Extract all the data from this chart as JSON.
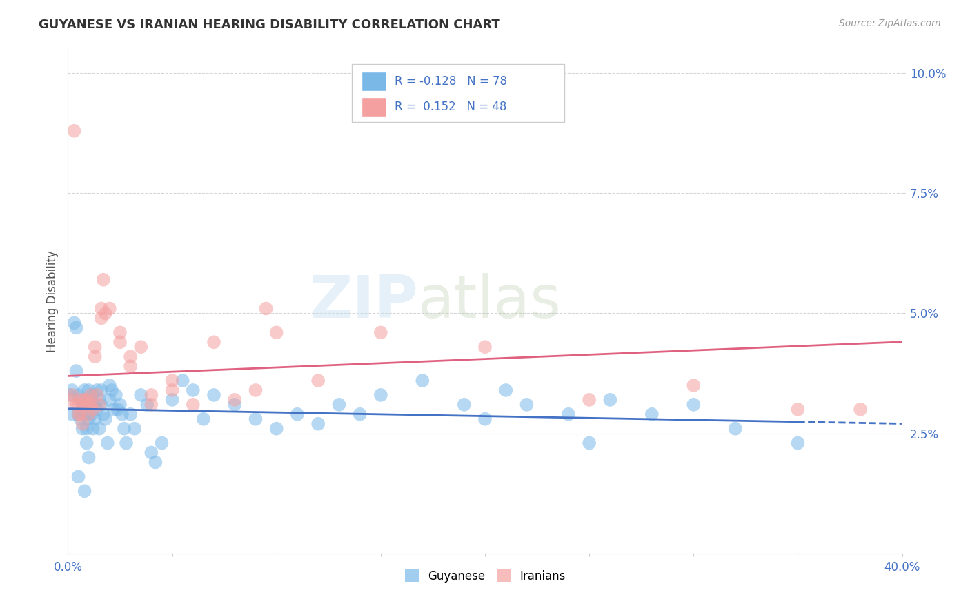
{
  "title": "GUYANESE VS IRANIAN HEARING DISABILITY CORRELATION CHART",
  "source": "Source: ZipAtlas.com",
  "ylabel": "Hearing Disability",
  "xlim": [
    0.0,
    0.4
  ],
  "ylim": [
    0.0,
    0.105
  ],
  "yticks": [
    0.025,
    0.05,
    0.075,
    0.1
  ],
  "ytick_labels": [
    "2.5%",
    "5.0%",
    "7.5%",
    "10.0%"
  ],
  "xticks": [
    0.0,
    0.05,
    0.1,
    0.15,
    0.2,
    0.25,
    0.3,
    0.35,
    0.4
  ],
  "xtick_labels": [
    "0.0%",
    "",
    "",
    "",
    "",
    "",
    "",
    "",
    "40.0%"
  ],
  "guyanese_color": "#7ab8e8",
  "iranian_color": "#f4a0a0",
  "guyanese_line_color": "#4472c4",
  "iranian_line_color": "#e06080",
  "guyanese_label": "Guyanese",
  "iranian_label": "Iranians",
  "R_guyanese": -0.128,
  "N_guyanese": 78,
  "R_iranian": 0.152,
  "N_iranian": 48,
  "watermark_zip": "ZIP",
  "watermark_atlas": "atlas",
  "background_color": "#ffffff",
  "legend_box_color": "#e8e8e8",
  "guyanese_points": [
    [
      0.001,
      0.033
    ],
    [
      0.002,
      0.034
    ],
    [
      0.002,
      0.029
    ],
    [
      0.003,
      0.048
    ],
    [
      0.004,
      0.047
    ],
    [
      0.004,
      0.038
    ],
    [
      0.005,
      0.033
    ],
    [
      0.005,
      0.029
    ],
    [
      0.006,
      0.032
    ],
    [
      0.006,
      0.028
    ],
    [
      0.007,
      0.031
    ],
    [
      0.007,
      0.026
    ],
    [
      0.008,
      0.034
    ],
    [
      0.008,
      0.029
    ],
    [
      0.009,
      0.026
    ],
    [
      0.009,
      0.023
    ],
    [
      0.01,
      0.034
    ],
    [
      0.01,
      0.031
    ],
    [
      0.01,
      0.028
    ],
    [
      0.011,
      0.032
    ],
    [
      0.011,
      0.029
    ],
    [
      0.012,
      0.033
    ],
    [
      0.012,
      0.026
    ],
    [
      0.013,
      0.031
    ],
    [
      0.013,
      0.028
    ],
    [
      0.014,
      0.034
    ],
    [
      0.014,
      0.03
    ],
    [
      0.015,
      0.032
    ],
    [
      0.015,
      0.026
    ],
    [
      0.016,
      0.034
    ],
    [
      0.016,
      0.031
    ],
    [
      0.017,
      0.029
    ],
    [
      0.018,
      0.028
    ],
    [
      0.019,
      0.023
    ],
    [
      0.02,
      0.035
    ],
    [
      0.02,
      0.032
    ],
    [
      0.021,
      0.034
    ],
    [
      0.022,
      0.03
    ],
    [
      0.023,
      0.033
    ],
    [
      0.024,
      0.03
    ],
    [
      0.025,
      0.031
    ],
    [
      0.026,
      0.029
    ],
    [
      0.027,
      0.026
    ],
    [
      0.028,
      0.023
    ],
    [
      0.03,
      0.029
    ],
    [
      0.032,
      0.026
    ],
    [
      0.035,
      0.033
    ],
    [
      0.038,
      0.031
    ],
    [
      0.04,
      0.021
    ],
    [
      0.042,
      0.019
    ],
    [
      0.045,
      0.023
    ],
    [
      0.05,
      0.032
    ],
    [
      0.055,
      0.036
    ],
    [
      0.06,
      0.034
    ],
    [
      0.065,
      0.028
    ],
    [
      0.07,
      0.033
    ],
    [
      0.08,
      0.031
    ],
    [
      0.09,
      0.028
    ],
    [
      0.1,
      0.026
    ],
    [
      0.11,
      0.029
    ],
    [
      0.12,
      0.027
    ],
    [
      0.13,
      0.031
    ],
    [
      0.14,
      0.029
    ],
    [
      0.15,
      0.033
    ],
    [
      0.17,
      0.036
    ],
    [
      0.19,
      0.031
    ],
    [
      0.2,
      0.028
    ],
    [
      0.21,
      0.034
    ],
    [
      0.22,
      0.031
    ],
    [
      0.24,
      0.029
    ],
    [
      0.25,
      0.023
    ],
    [
      0.26,
      0.032
    ],
    [
      0.28,
      0.029
    ],
    [
      0.3,
      0.031
    ],
    [
      0.32,
      0.026
    ],
    [
      0.005,
      0.016
    ],
    [
      0.008,
      0.013
    ],
    [
      0.01,
      0.02
    ],
    [
      0.35,
      0.023
    ]
  ],
  "iranian_points": [
    [
      0.001,
      0.032
    ],
    [
      0.002,
      0.033
    ],
    [
      0.003,
      0.088
    ],
    [
      0.004,
      0.031
    ],
    [
      0.005,
      0.031
    ],
    [
      0.005,
      0.029
    ],
    [
      0.006,
      0.032
    ],
    [
      0.006,
      0.029
    ],
    [
      0.007,
      0.031
    ],
    [
      0.007,
      0.027
    ],
    [
      0.008,
      0.032
    ],
    [
      0.009,
      0.032
    ],
    [
      0.01,
      0.031
    ],
    [
      0.01,
      0.029
    ],
    [
      0.011,
      0.033
    ],
    [
      0.011,
      0.031
    ],
    [
      0.012,
      0.03
    ],
    [
      0.013,
      0.043
    ],
    [
      0.013,
      0.041
    ],
    [
      0.014,
      0.033
    ],
    [
      0.015,
      0.031
    ],
    [
      0.016,
      0.051
    ],
    [
      0.016,
      0.049
    ],
    [
      0.017,
      0.057
    ],
    [
      0.018,
      0.05
    ],
    [
      0.02,
      0.051
    ],
    [
      0.025,
      0.046
    ],
    [
      0.025,
      0.044
    ],
    [
      0.03,
      0.041
    ],
    [
      0.03,
      0.039
    ],
    [
      0.035,
      0.043
    ],
    [
      0.04,
      0.033
    ],
    [
      0.04,
      0.031
    ],
    [
      0.05,
      0.036
    ],
    [
      0.05,
      0.034
    ],
    [
      0.06,
      0.031
    ],
    [
      0.07,
      0.044
    ],
    [
      0.08,
      0.032
    ],
    [
      0.09,
      0.034
    ],
    [
      0.095,
      0.051
    ],
    [
      0.1,
      0.046
    ],
    [
      0.12,
      0.036
    ],
    [
      0.15,
      0.046
    ],
    [
      0.2,
      0.043
    ],
    [
      0.25,
      0.032
    ],
    [
      0.3,
      0.035
    ],
    [
      0.35,
      0.03
    ],
    [
      0.38,
      0.03
    ]
  ]
}
